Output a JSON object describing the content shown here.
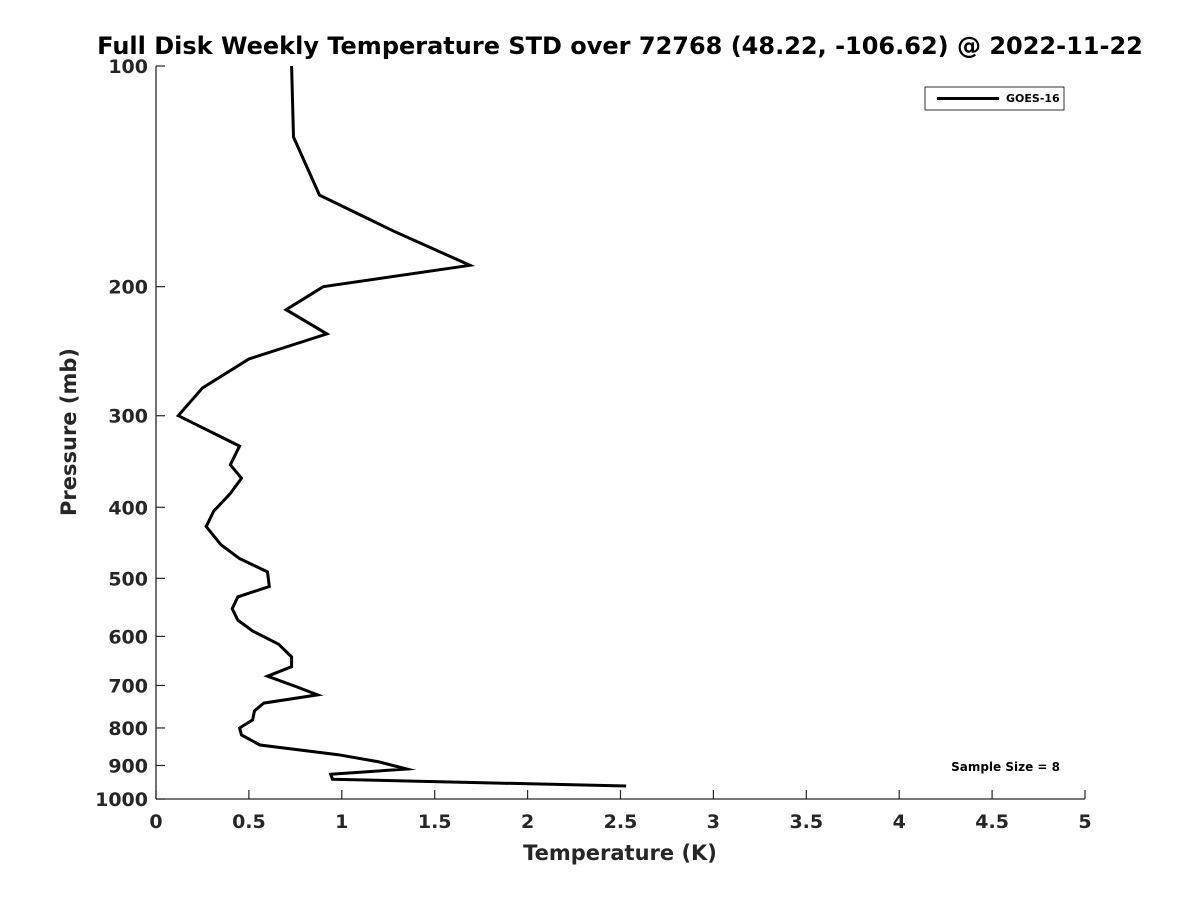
{
  "chart_data": {
    "type": "line",
    "title": "Full Disk Weekly Temperature STD over 72768 (48.22, -106.62) @ 2022-11-22",
    "xlabel": "Temperature (K)",
    "ylabel": "Pressure (mb)",
    "xlim": [
      0,
      5
    ],
    "ylim": [
      100,
      1000
    ],
    "y_scale": "log",
    "y_reversed": true,
    "x_ticks": [
      "0",
      "0.5",
      "1",
      "1.5",
      "2",
      "2.5",
      "3",
      "3.5",
      "4",
      "4.5",
      "5"
    ],
    "y_ticks": [
      "100",
      "200",
      "300",
      "400",
      "500",
      "600",
      "700",
      "800",
      "900",
      "1000"
    ],
    "grid": false,
    "legend_position": "top-right",
    "series": [
      {
        "name": "GOES-16",
        "color": "#000000",
        "x": [
          0.73,
          0.74,
          0.88,
          1.28,
          1.69,
          0.9,
          0.7,
          0.92,
          0.5,
          0.25,
          0.12,
          0.45,
          0.4,
          0.46,
          0.4,
          0.31,
          0.27,
          0.35,
          0.45,
          0.6,
          0.61,
          0.44,
          0.41,
          0.44,
          0.52,
          0.66,
          0.73,
          0.73,
          0.6,
          0.75,
          0.87,
          0.58,
          0.53,
          0.52,
          0.45,
          0.46,
          0.56,
          0.98,
          1.2,
          1.35,
          0.94,
          0.95,
          2.53
        ],
        "y": [
          100,
          125,
          150,
          168,
          187,
          200,
          215,
          232,
          251,
          275,
          300,
          330,
          350,
          365,
          383,
          405,
          425,
          450,
          470,
          490,
          513,
          530,
          550,
          570,
          590,
          615,
          640,
          660,
          680,
          702,
          721,
          740,
          758,
          780,
          800,
          818,
          844,
          870,
          890,
          910,
          925,
          940,
          960
        ]
      }
    ],
    "annotations": [
      "Sample Size = 8"
    ]
  }
}
